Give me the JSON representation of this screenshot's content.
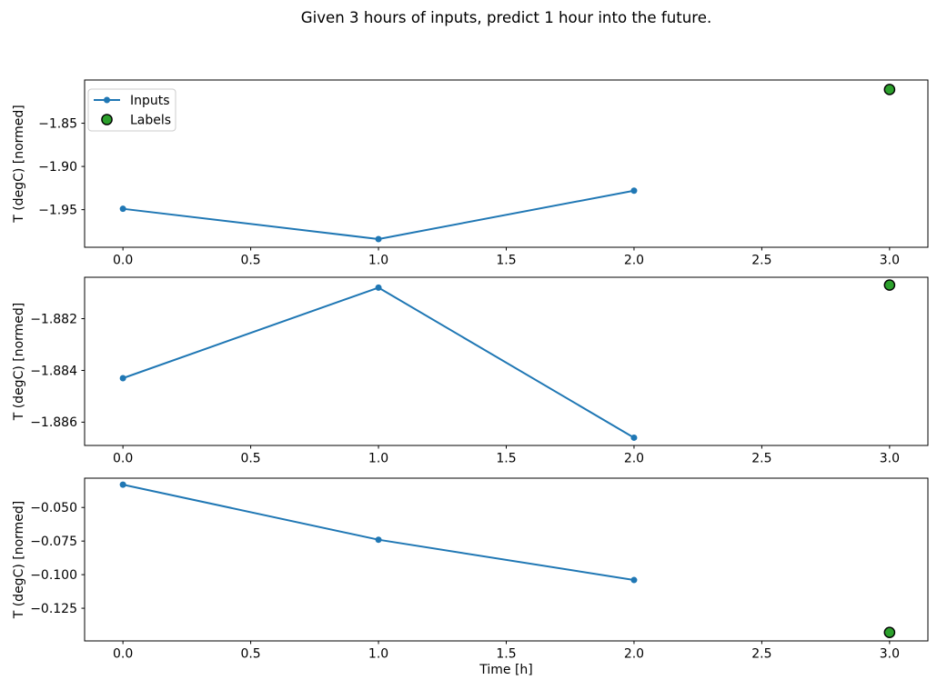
{
  "figure": {
    "title": "Given 3 hours of inputs, predict 1 hour into the future.",
    "xlabel": "Time [h]",
    "ylabel": "T (degC) [normed]"
  },
  "colors": {
    "inputs_line": "#1f77b4",
    "labels_fill": "#2ca02c",
    "labels_edge": "#000000",
    "spine": "#000000",
    "legend_border": "#cccccc"
  },
  "legend": {
    "position": "upper-left",
    "items": [
      {
        "label": "Inputs",
        "marker": "line-with-dot",
        "color": "#1f77b4"
      },
      {
        "label": "Labels",
        "marker": "filled-circle",
        "color": "#2ca02c",
        "edge": "#000000"
      }
    ]
  },
  "chart_data": [
    {
      "subplot": 1,
      "type": "line",
      "ylabel": "T (degC) [normed]",
      "xlabel": "",
      "series": [
        {
          "name": "Inputs",
          "kind": "line",
          "x": [
            0,
            1,
            2
          ],
          "y": [
            -1.949,
            -1.984,
            -1.928
          ]
        },
        {
          "name": "Labels",
          "kind": "scatter",
          "x": [
            3
          ],
          "y": [
            -1.811
          ]
        }
      ],
      "xlim": [
        -0.15,
        3.15
      ],
      "ylim": [
        -1.9935,
        -1.8
      ],
      "xticks": {
        "values": [
          0,
          0.5,
          1,
          1.5,
          2,
          2.5,
          3
        ],
        "labels": [
          "0.0",
          "0.5",
          "1.0",
          "1.5",
          "2.0",
          "2.5",
          "3.0"
        ]
      },
      "yticks": {
        "values": [
          -1.95,
          -1.9,
          -1.85
        ],
        "labels": [
          "−1.95",
          "−1.90",
          "−1.85"
        ]
      },
      "legend": true,
      "grid": false
    },
    {
      "subplot": 2,
      "type": "line",
      "ylabel": "T (degC) [normed]",
      "xlabel": "",
      "series": [
        {
          "name": "Inputs",
          "kind": "line",
          "x": [
            0,
            1,
            2
          ],
          "y": [
            -1.8843,
            -1.8808,
            -1.8866
          ]
        },
        {
          "name": "Labels",
          "kind": "scatter",
          "x": [
            3
          ],
          "y": [
            -1.8807
          ]
        }
      ],
      "xlim": [
        -0.15,
        3.15
      ],
      "ylim": [
        -1.8869,
        -1.8804
      ],
      "xticks": {
        "values": [
          0,
          0.5,
          1,
          1.5,
          2,
          2.5,
          3
        ],
        "labels": [
          "0.0",
          "0.5",
          "1.0",
          "1.5",
          "2.0",
          "2.5",
          "3.0"
        ]
      },
      "yticks": {
        "values": [
          -1.886,
          -1.884,
          -1.882
        ],
        "labels": [
          "−1.886",
          "−1.884",
          "−1.882"
        ]
      },
      "legend": false,
      "grid": false
    },
    {
      "subplot": 3,
      "type": "line",
      "ylabel": "T (degC) [normed]",
      "xlabel": "Time [h]",
      "series": [
        {
          "name": "Inputs",
          "kind": "line",
          "x": [
            0,
            1,
            2
          ],
          "y": [
            -0.033,
            -0.074,
            -0.104
          ]
        },
        {
          "name": "Labels",
          "kind": "scatter",
          "x": [
            3
          ],
          "y": [
            -0.143
          ]
        }
      ],
      "xlim": [
        -0.15,
        3.15
      ],
      "ylim": [
        -0.1493,
        -0.0282
      ],
      "xticks": {
        "values": [
          0,
          0.5,
          1,
          1.5,
          2,
          2.5,
          3
        ],
        "labels": [
          "0.0",
          "0.5",
          "1.0",
          "1.5",
          "2.0",
          "2.5",
          "3.0"
        ]
      },
      "yticks": {
        "values": [
          -0.125,
          -0.1,
          -0.075,
          -0.05
        ],
        "labels": [
          "−0.125",
          "−0.100",
          "−0.075",
          "−0.050"
        ]
      },
      "legend": false,
      "grid": false
    }
  ]
}
